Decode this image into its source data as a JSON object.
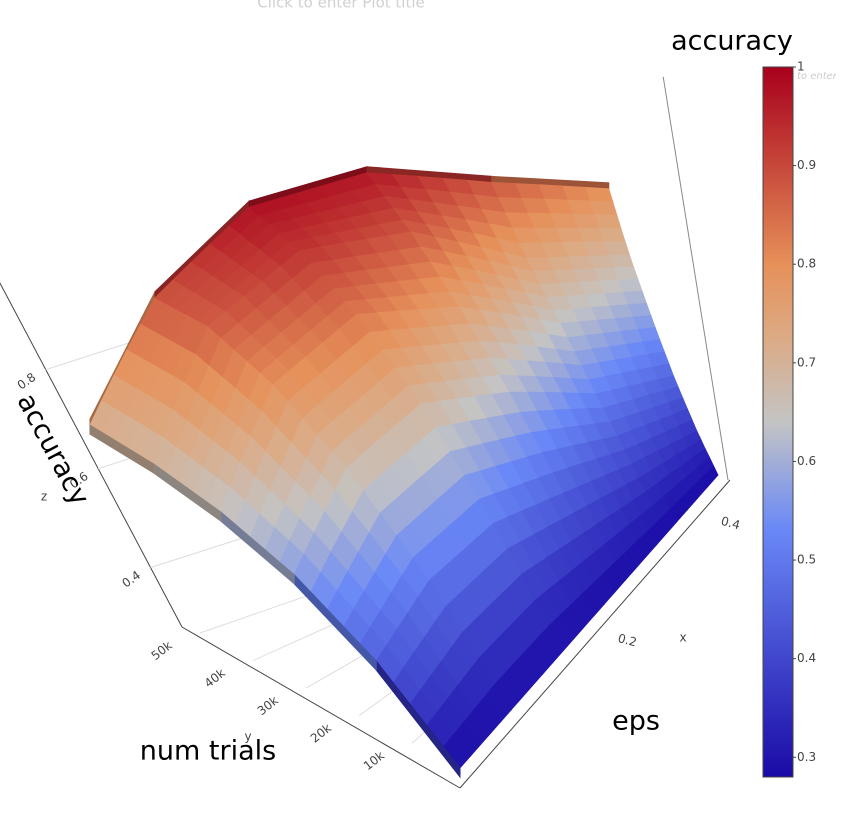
{
  "chart_data": {
    "type": "surface",
    "title": "Click to enter Plot title",
    "colorbar_title": "accuracy",
    "colorbar_placeholder": "Click to enter Colorscale title",
    "xlabel": "eps",
    "ylabel": "num trials",
    "zlabel": "accuracy",
    "x_axis_name": "x",
    "y_axis_name": "y",
    "z_axis_name": "z",
    "x": [
      0,
      0.1,
      0.2,
      0.3,
      0.4,
      0.5
    ],
    "y": [
      1000,
      10000,
      20000,
      30000,
      40000,
      50000
    ],
    "z": [
      [
        0.28,
        0.28,
        0.28,
        0.28,
        0.28,
        0.28
      ],
      [
        0.45,
        0.5,
        0.5,
        0.45,
        0.4,
        0.36
      ],
      [
        0.57,
        0.68,
        0.7,
        0.62,
        0.52,
        0.46
      ],
      [
        0.64,
        0.8,
        0.84,
        0.76,
        0.64,
        0.57
      ],
      [
        0.68,
        0.87,
        0.93,
        0.88,
        0.75,
        0.68
      ],
      [
        0.7,
        0.88,
        0.98,
        0.97,
        0.88,
        0.8
      ]
    ],
    "xlim": [
      0,
      0.5
    ],
    "ylim": [
      1000,
      50000
    ],
    "zlim": [
      0.28,
      1
    ],
    "xticks": [
      0.2,
      0.4
    ],
    "yticks": [
      {
        "value": 10000,
        "label": "10k"
      },
      {
        "value": 20000,
        "label": "20k"
      },
      {
        "value": 30000,
        "label": "30k"
      },
      {
        "value": 40000,
        "label": "40k"
      },
      {
        "value": 50000,
        "label": "50k"
      }
    ],
    "zticks": [
      0.4,
      0.6,
      0.8
    ],
    "colorbar_ticks": [
      0.3,
      0.4,
      0.5,
      0.6,
      0.7,
      0.8,
      0.9,
      1
    ],
    "colorscale": [
      [
        0,
        "#1a0aa6"
      ],
      [
        0.35,
        "#6a89f7"
      ],
      [
        0.5,
        "#c4c4c4"
      ],
      [
        0.62,
        "#dcaa84"
      ],
      [
        0.72,
        "#e6915a"
      ],
      [
        1,
        "#a8001c"
      ]
    ],
    "grid": true
  }
}
